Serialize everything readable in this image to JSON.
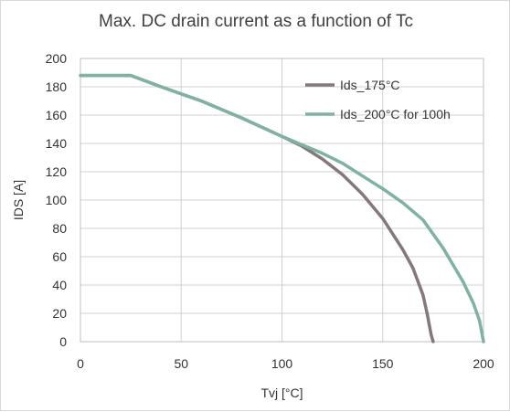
{
  "chart_data": {
    "type": "line",
    "title": "Max. DC drain current as a function of Tc",
    "xlabel": "Tvj [°C]",
    "ylabel": "IDS [A]",
    "xlim": [
      0,
      200
    ],
    "ylim": [
      0,
      200
    ],
    "x_ticks": [
      "0",
      "50",
      "100",
      "150",
      "200"
    ],
    "y_ticks": [
      "0",
      "20",
      "40",
      "60",
      "80",
      "100",
      "120",
      "140",
      "160",
      "180",
      "200"
    ],
    "grid": true,
    "legend_position": "top-right",
    "series": [
      {
        "name": "Ids_175°C",
        "color": "#857878",
        "points": [
          [
            0,
            188
          ],
          [
            25,
            188
          ],
          [
            40,
            180
          ],
          [
            60,
            170
          ],
          [
            80,
            158
          ],
          [
            100,
            145
          ],
          [
            110,
            138
          ],
          [
            120,
            129
          ],
          [
            130,
            118
          ],
          [
            140,
            104
          ],
          [
            150,
            87
          ],
          [
            160,
            65
          ],
          [
            165,
            52
          ],
          [
            170,
            33
          ],
          [
            172,
            20
          ],
          [
            174,
            5
          ],
          [
            175,
            0
          ]
        ]
      },
      {
        "name": "Ids_200°C for 100h",
        "color": "#7fb3a0",
        "points": [
          [
            0,
            188
          ],
          [
            25,
            188
          ],
          [
            40,
            180
          ],
          [
            60,
            170
          ],
          [
            80,
            158
          ],
          [
            100,
            145
          ],
          [
            110,
            139
          ],
          [
            120,
            133
          ],
          [
            130,
            126
          ],
          [
            140,
            117
          ],
          [
            150,
            108
          ],
          [
            160,
            98
          ],
          [
            170,
            86
          ],
          [
            180,
            66
          ],
          [
            190,
            42
          ],
          [
            195,
            27
          ],
          [
            198,
            15
          ],
          [
            200,
            0
          ]
        ]
      }
    ]
  }
}
